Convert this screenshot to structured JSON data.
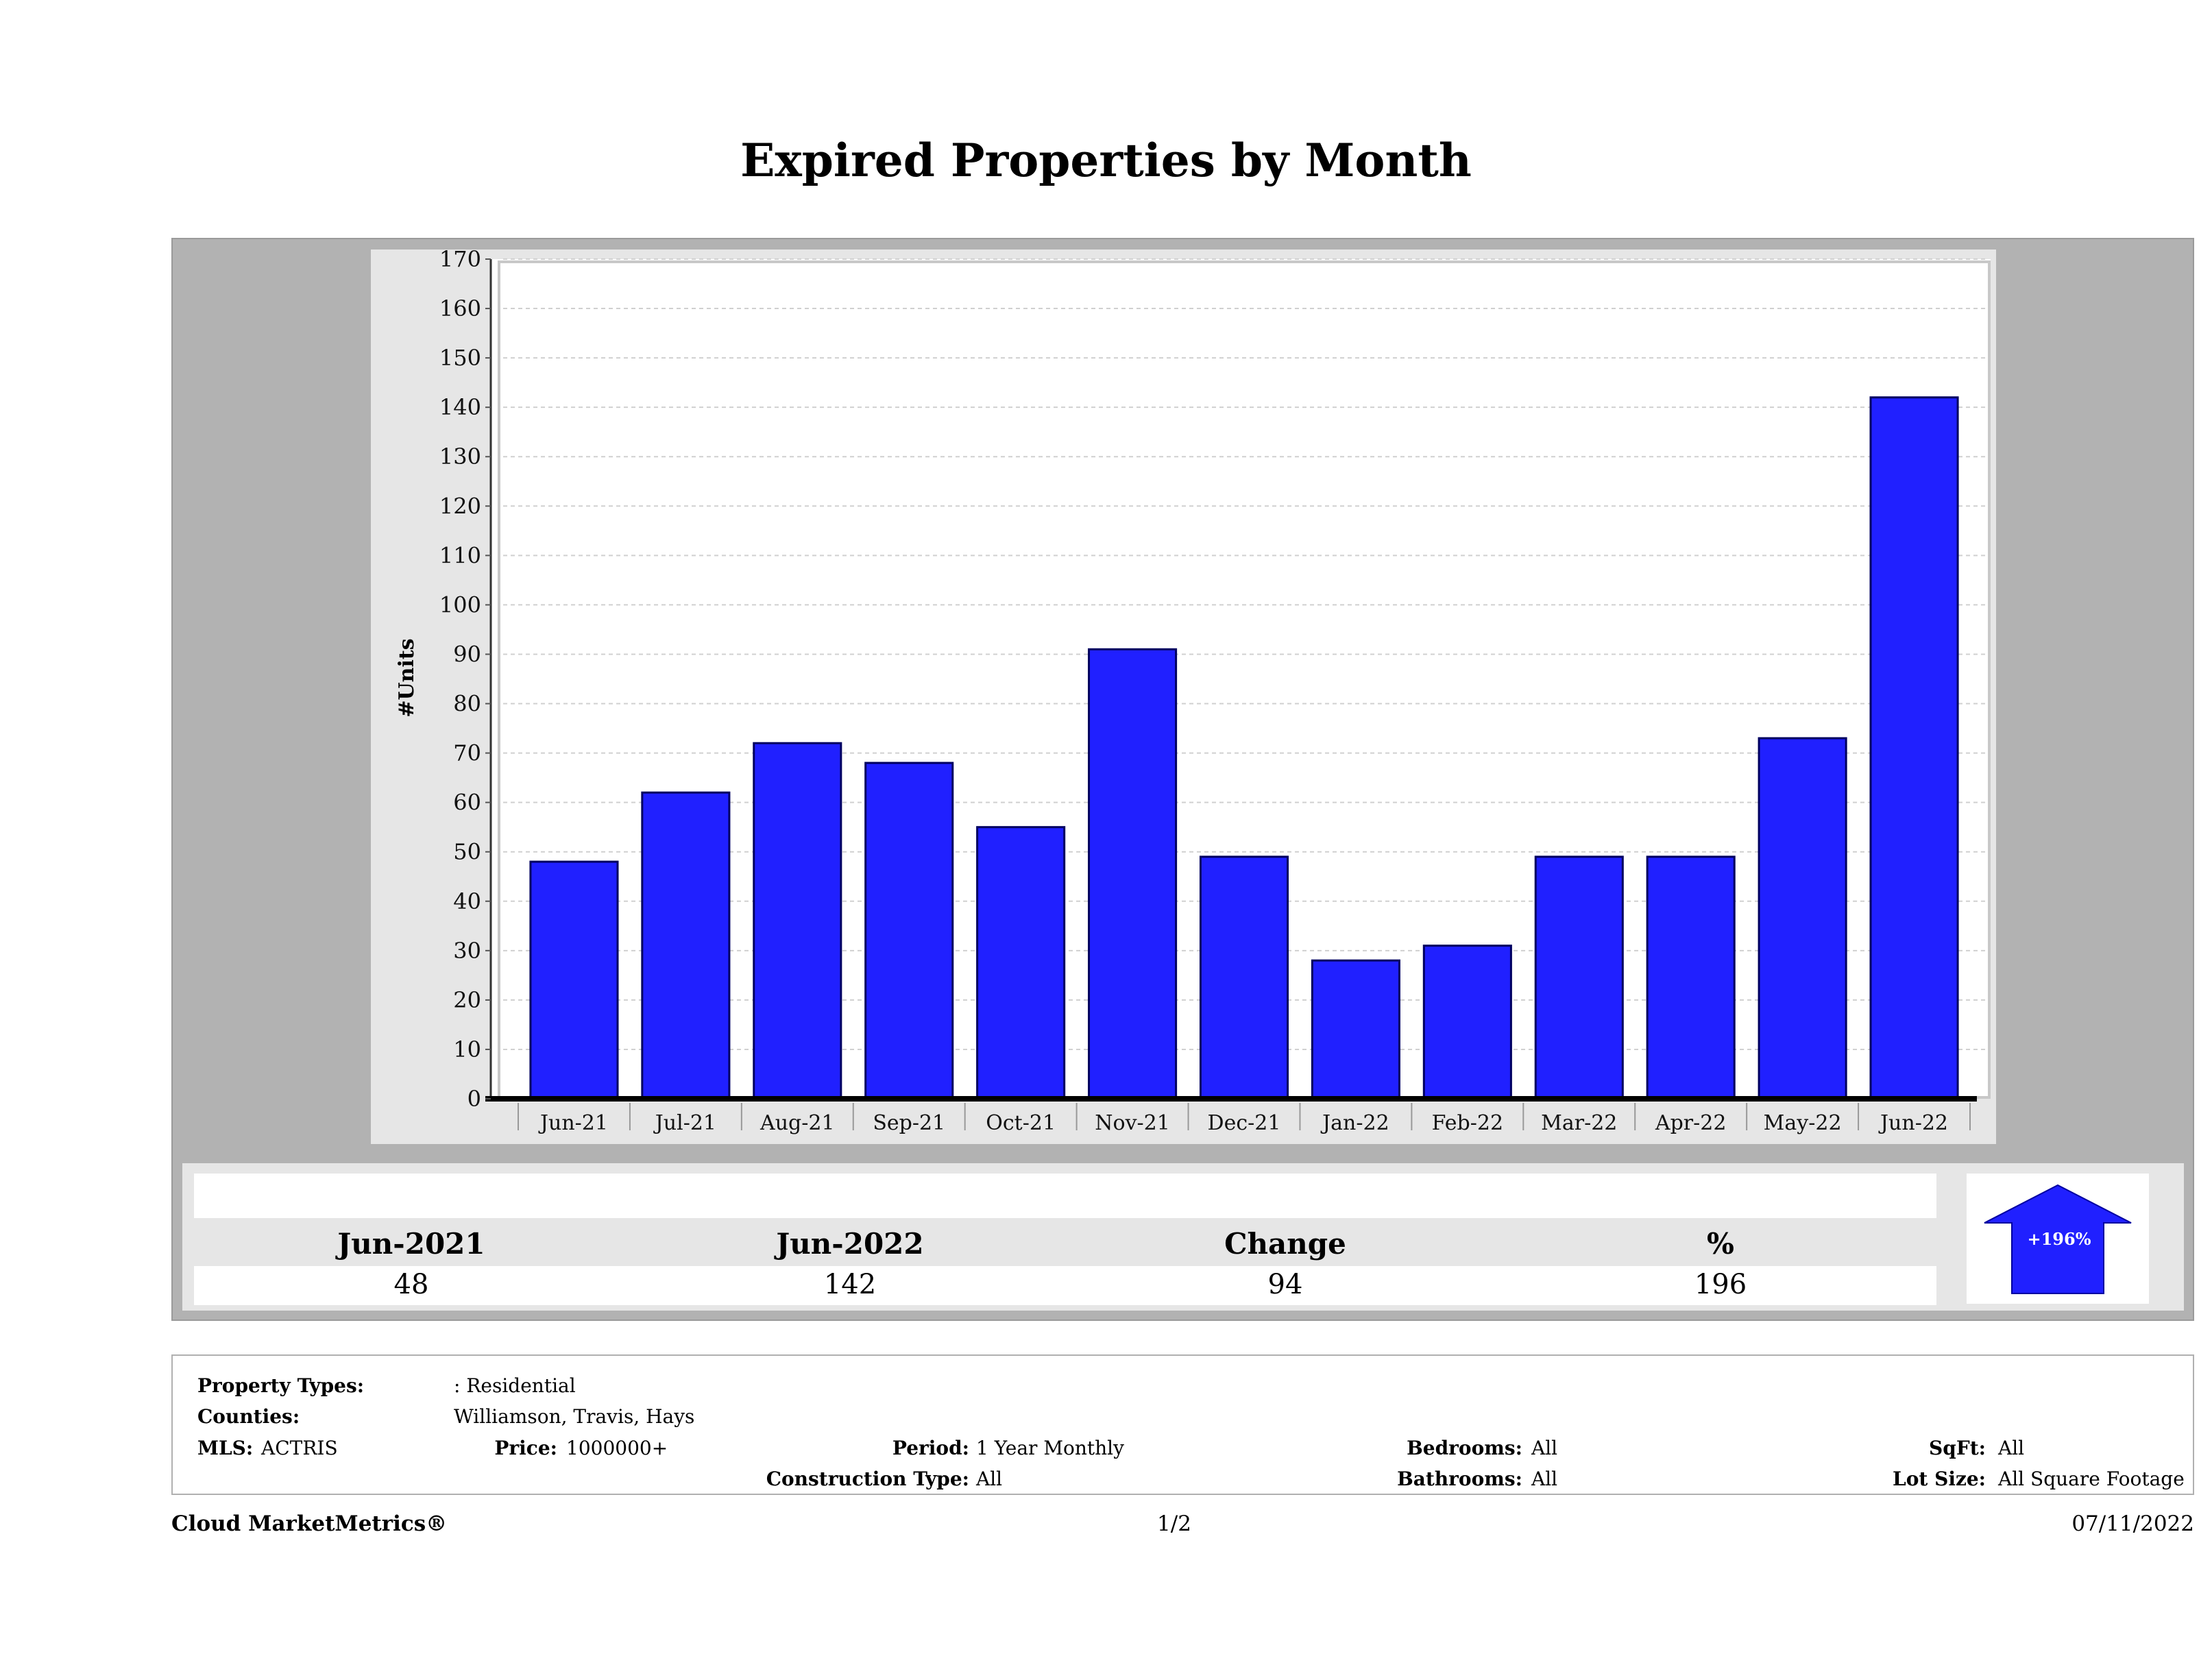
{
  "page_title": "Expired Properties by Month",
  "chart_data": {
    "type": "bar",
    "title": "Expired Properties by Month",
    "xlabel": "",
    "ylabel": "#Units",
    "ylim": [
      0,
      170
    ],
    "ytick_step": 10,
    "grid": true,
    "categories": [
      "Jun-21",
      "Jul-21",
      "Aug-21",
      "Sep-21",
      "Oct-21",
      "Nov-21",
      "Dec-21",
      "Jan-22",
      "Feb-22",
      "Mar-22",
      "Apr-22",
      "May-22",
      "Jun-22"
    ],
    "values": [
      48,
      62,
      72,
      68,
      55,
      91,
      49,
      28,
      31,
      49,
      49,
      73,
      142
    ],
    "bar_color": "#2020ff"
  },
  "summary": {
    "headers": [
      "Jun-2021",
      "Jun-2022",
      "Change",
      "%"
    ],
    "values": [
      "48",
      "142",
      "94",
      "196"
    ],
    "trend_label": "+196%",
    "trend_direction": "up",
    "trend_color": "#2020ff"
  },
  "filters": {
    "property_types_label": "Property Types:",
    "property_types_value": ": Residential",
    "counties_label": "Counties:",
    "counties_value": "Williamson, Travis, Hays",
    "mls_label": "MLS:",
    "mls_value": "ACTRIS",
    "price_label": "Price:",
    "price_value": "1000000+",
    "period_label": "Period:",
    "period_value": "1 Year Monthly",
    "construction_label": "Construction Type:",
    "construction_value": "All",
    "bedrooms_label": "Bedrooms:",
    "bedrooms_value": "All",
    "bathrooms_label": "Bathrooms:",
    "bathrooms_value": "All",
    "sqft_label": "SqFt:",
    "sqft_value": "All",
    "lotsize_label": "Lot Size:",
    "lotsize_value": "All Square Footage"
  },
  "footer": {
    "brand": "Cloud MarketMetrics®",
    "page": "1/2",
    "date": "07/11/2022"
  }
}
